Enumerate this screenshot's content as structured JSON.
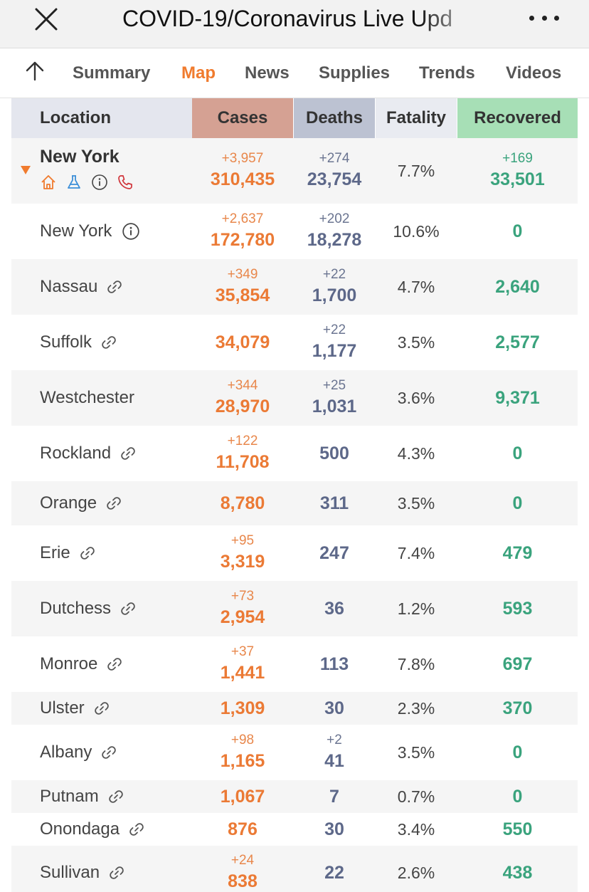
{
  "header": {
    "title": "COVID-19/Coronavirus Live Upd"
  },
  "tabs": [
    {
      "label": "Summary",
      "active": false
    },
    {
      "label": "Map",
      "active": true
    },
    {
      "label": "News",
      "active": false
    },
    {
      "label": "Supplies",
      "active": false
    },
    {
      "label": "Trends",
      "active": false
    },
    {
      "label": "Videos",
      "active": false
    }
  ],
  "colors": {
    "accent": "#f07b2e",
    "cases": "#eb7a35",
    "deaths": "#5d6889",
    "recovered": "#3aa37d"
  },
  "table": {
    "columns": [
      "Location",
      "Cases",
      "Deaths",
      "Fatality",
      "Recovered"
    ],
    "state": {
      "name": "New York",
      "cases_delta": "+3,957",
      "cases": "310,435",
      "deaths_delta": "+274",
      "deaths": "23,754",
      "fatality": "7.7%",
      "recovered_delta": "+169",
      "recovered": "33,501",
      "icons": [
        "home-icon",
        "flask-icon",
        "info-icon",
        "phone-icon"
      ]
    },
    "rows": [
      {
        "name": "New York",
        "icon": "info-icon",
        "cases_delta": "+2,637",
        "cases": "172,780",
        "deaths_delta": "+202",
        "deaths": "18,278",
        "fatality": "10.6%",
        "recovered_delta": "",
        "recovered": "0"
      },
      {
        "name": "Nassau",
        "icon": "link-icon",
        "cases_delta": "+349",
        "cases": "35,854",
        "deaths_delta": "+22",
        "deaths": "1,700",
        "fatality": "4.7%",
        "recovered_delta": "",
        "recovered": "2,640"
      },
      {
        "name": "Suffolk",
        "icon": "link-icon",
        "cases_delta": "",
        "cases": "34,079",
        "deaths_delta": "+22",
        "deaths": "1,177",
        "fatality": "3.5%",
        "recovered_delta": "",
        "recovered": "2,577"
      },
      {
        "name": "Westchester",
        "icon": "",
        "cases_delta": "+344",
        "cases": "28,970",
        "deaths_delta": "+25",
        "deaths": "1,031",
        "fatality": "3.6%",
        "recovered_delta": "",
        "recovered": "9,371"
      },
      {
        "name": "Rockland",
        "icon": "link-icon",
        "cases_delta": "+122",
        "cases": "11,708",
        "deaths_delta": "",
        "deaths": "500",
        "fatality": "4.3%",
        "recovered_delta": "",
        "recovered": "0"
      },
      {
        "name": "Orange",
        "icon": "link-icon",
        "cases_delta": "",
        "cases": "8,780",
        "deaths_delta": "",
        "deaths": "311",
        "fatality": "3.5%",
        "recovered_delta": "",
        "recovered": "0"
      },
      {
        "name": "Erie",
        "icon": "link-icon",
        "cases_delta": "+95",
        "cases": "3,319",
        "deaths_delta": "",
        "deaths": "247",
        "fatality": "7.4%",
        "recovered_delta": "",
        "recovered": "479"
      },
      {
        "name": "Dutchess",
        "icon": "link-icon",
        "cases_delta": "+73",
        "cases": "2,954",
        "deaths_delta": "",
        "deaths": "36",
        "fatality": "1.2%",
        "recovered_delta": "",
        "recovered": "593"
      },
      {
        "name": "Monroe",
        "icon": "link-icon",
        "cases_delta": "+37",
        "cases": "1,441",
        "deaths_delta": "",
        "deaths": "113",
        "fatality": "7.8%",
        "recovered_delta": "",
        "recovered": "697"
      },
      {
        "name": "Ulster",
        "icon": "link-icon",
        "cases_delta": "",
        "cases": "1,309",
        "deaths_delta": "",
        "deaths": "30",
        "fatality": "2.3%",
        "recovered_delta": "",
        "recovered": "370"
      },
      {
        "name": "Albany",
        "icon": "link-icon",
        "cases_delta": "+98",
        "cases": "1,165",
        "deaths_delta": "+2",
        "deaths": "41",
        "fatality": "3.5%",
        "recovered_delta": "",
        "recovered": "0"
      },
      {
        "name": "Putnam",
        "icon": "link-icon",
        "cases_delta": "",
        "cases": "1,067",
        "deaths_delta": "",
        "deaths": "7",
        "fatality": "0.7%",
        "recovered_delta": "",
        "recovered": "0"
      },
      {
        "name": "Onondaga",
        "icon": "link-icon",
        "cases_delta": "",
        "cases": "876",
        "deaths_delta": "",
        "deaths": "30",
        "fatality": "3.4%",
        "recovered_delta": "",
        "recovered": "550"
      },
      {
        "name": "Sullivan",
        "icon": "link-icon",
        "cases_delta": "+24",
        "cases": "838",
        "deaths_delta": "",
        "deaths": "22",
        "fatality": "2.6%",
        "recovered_delta": "",
        "recovered": "438"
      }
    ]
  }
}
